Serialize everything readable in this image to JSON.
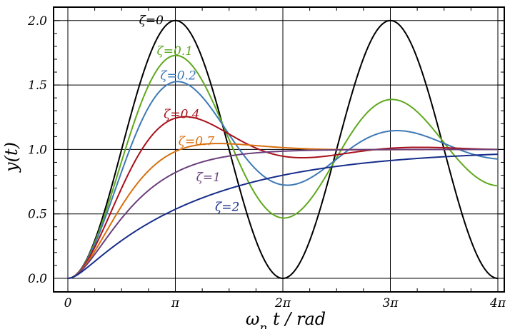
{
  "chart_data": {
    "type": "line",
    "xlabel": "ω",
    "xlabel_sub": "n",
    "xlabel_rest": " t / rad",
    "ylabel": "y(t)",
    "xlim": [
      0,
      12.566
    ],
    "ylim": [
      -0.1,
      2.1
    ],
    "grid": true,
    "xticks": [
      {
        "value": 0,
        "label": "0"
      },
      {
        "value": 3.14159,
        "label": "π"
      },
      {
        "value": 6.28319,
        "label": "2π"
      },
      {
        "value": 9.42478,
        "label": "3π"
      },
      {
        "value": 12.56637,
        "label": "4π"
      }
    ],
    "yticks": [
      {
        "value": 0.0,
        "label": "0.0"
      },
      {
        "value": 0.5,
        "label": "0.5"
      },
      {
        "value": 1.0,
        "label": "1.0"
      },
      {
        "value": 1.5,
        "label": "1.5"
      },
      {
        "value": 2.0,
        "label": "2.0"
      }
    ],
    "series": [
      {
        "name": "ζ=0",
        "zeta": 0,
        "color": "#000000",
        "label_at": [
          2.08,
          2.0
        ]
      },
      {
        "name": "ζ=0.1",
        "zeta": 0.1,
        "color": "#5fa81c",
        "label_at": [
          2.6,
          1.76
        ]
      },
      {
        "name": "ζ=0.2",
        "zeta": 0.2,
        "color": "#3d79b5",
        "label_at": [
          2.7,
          1.57
        ]
      },
      {
        "name": "ζ=0.4",
        "zeta": 0.4,
        "color": "#a8111a",
        "label_at": [
          2.8,
          1.27
        ]
      },
      {
        "name": "ζ=0.7",
        "zeta": 0.7,
        "color": "#d8700f",
        "label_at": [
          3.23,
          1.06
        ]
      },
      {
        "name": "ζ=1",
        "zeta": 1,
        "color": "#6b3f7d",
        "label_at": [
          3.75,
          0.78
        ]
      },
      {
        "name": "ζ=2",
        "zeta": 2,
        "color": "#172d8a",
        "label_at": [
          4.3,
          0.55
        ]
      }
    ]
  }
}
